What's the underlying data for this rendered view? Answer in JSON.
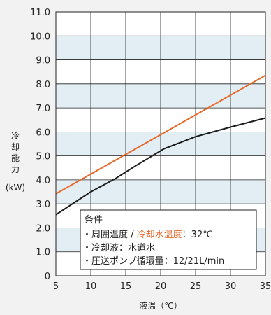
{
  "chart_data": {
    "type": "line",
    "title": "",
    "xlabel": "液温（℃）",
    "ylabel_chars": [
      "冷",
      "却",
      "能",
      "力"
    ],
    "ylabel_unit": "(kW)",
    "xlim": [
      5,
      35
    ],
    "ylim": [
      0,
      11
    ],
    "x_ticks": [
      5,
      10,
      15,
      20,
      25,
      30,
      35
    ],
    "y_ticks": [
      0,
      1.0,
      2.0,
      3.0,
      4.0,
      5.0,
      6.0,
      7.0,
      8.0,
      9.0,
      10.0,
      11.0
    ],
    "y_tick_labels": [
      "0",
      "1.0",
      "2.0",
      "3.0",
      "4.0",
      "5.0",
      "6.0",
      "7.0",
      "8.0",
      "9.0",
      "10.0",
      "11.0"
    ],
    "grid": true,
    "series": [
      {
        "color": "#e8682a",
        "x": [
          5,
          35
        ],
        "y": [
          3.42,
          8.35
        ]
      },
      {
        "color": "#1a1a1a",
        "x": [
          5,
          10,
          13.5,
          16.5,
          20.5,
          25,
          30,
          35
        ],
        "y": [
          2.55,
          3.5,
          4.05,
          4.6,
          5.3,
          5.8,
          6.2,
          6.58
        ]
      }
    ],
    "legend_box": {
      "title": "条件",
      "line1_prefix": "・周囲温度 / ",
      "line1_highlight": "冷却水温度",
      "line1_suffix": "：32℃",
      "line2": "・冷却液：水道水",
      "line3": "・圧送ポンプ循環量：12/21L/min",
      "highlight_color": "#e8682a"
    },
    "colors": {
      "band": "#e2eef3",
      "plot_bg": "#ffffff",
      "axis": "#222222"
    }
  }
}
